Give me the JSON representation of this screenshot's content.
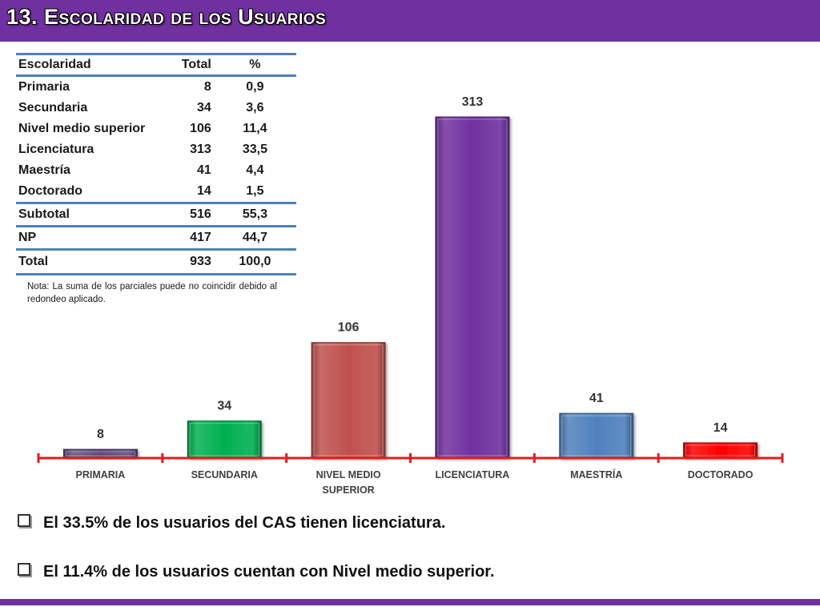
{
  "title": "13. Escolaridad de los Usuarios",
  "table": {
    "headers": [
      "Escolaridad",
      "Total",
      "%"
    ],
    "rows": [
      [
        "Primaria",
        "8",
        "0,9"
      ],
      [
        "Secundaria",
        "34",
        "3,6"
      ],
      [
        "Nivel medio superior",
        "106",
        "11,4"
      ],
      [
        "Licenciatura",
        "313",
        "33,5"
      ],
      [
        "Maestría",
        "41",
        "4,4"
      ],
      [
        "Doctorado",
        "14",
        "1,5"
      ],
      [
        "Subtotal",
        "516",
        "55,3"
      ],
      [
        "NP",
        "417",
        "44,7"
      ],
      [
        "Total",
        "933",
        "100,0"
      ]
    ],
    "border_color": "#4f81bd"
  },
  "note": "Nota: La suma de los parciales puede no coincidir debido al redondeo aplicado.",
  "chart_data": {
    "type": "bar",
    "categories": [
      "PRIMARIA",
      "SECUNDARIA",
      "NIVEL MEDIO SUPERIOR",
      "LICENCIATURA",
      "MAESTRÍA",
      "DOCTORADO"
    ],
    "category_lines": [
      [
        "PRIMARIA"
      ],
      [
        "SECUNDARIA"
      ],
      [
        "NIVEL MEDIO",
        "SUPERIOR"
      ],
      [
        "LICENCIATURA"
      ],
      [
        "MAESTRÍA"
      ],
      [
        "DOCTORADO"
      ]
    ],
    "values": [
      8,
      34,
      106,
      313,
      41,
      14
    ],
    "data_labels": [
      "8",
      "34",
      "106",
      "313",
      "41",
      "14"
    ],
    "colors": [
      "#604a7b",
      "#00b050",
      "#c0504d",
      "#7030a0",
      "#4f81bd",
      "#ff0000"
    ],
    "axis_color": "#e31d1d",
    "ylim": [
      0,
      313
    ],
    "grid": false,
    "legend": "none",
    "title": "",
    "xlabel": "",
    "ylabel": ""
  },
  "bullets": [
    "El 33.5% de los usuarios del CAS tienen licenciatura.",
    "El 11.4% de los usuarios cuentan con Nivel medio superior."
  ],
  "colors": {
    "accent": "#7030a0"
  }
}
